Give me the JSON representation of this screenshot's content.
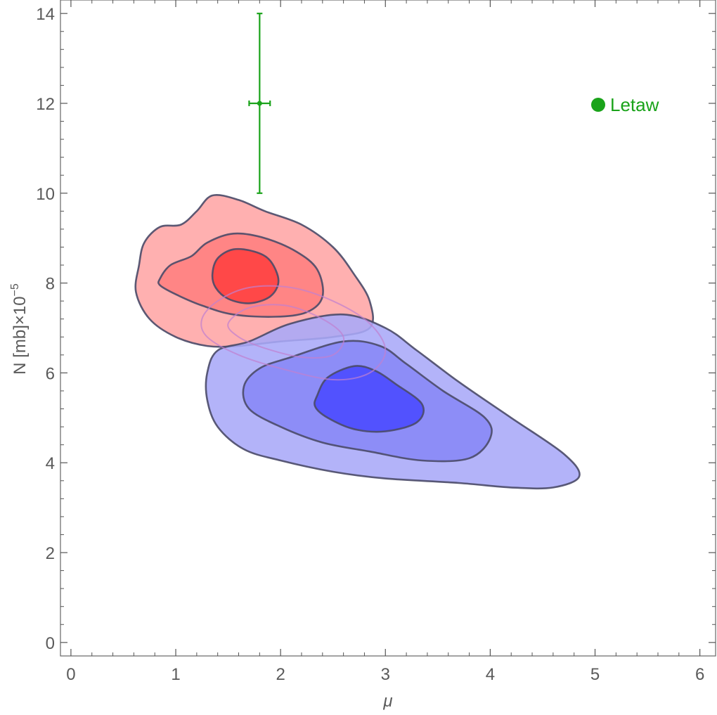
{
  "chart_data": {
    "type": "contour",
    "xlabel": "μ",
    "ylabel_main": "N [mb]×10",
    "ylabel_exponent": "−5",
    "xlim": [
      -0.1,
      6.15
    ],
    "ylim": [
      -0.3,
      14.3
    ],
    "x_ticks": [
      0,
      1,
      2,
      3,
      4,
      5,
      6
    ],
    "x_tick_labels": [
      "0",
      "1",
      "2",
      "3",
      "4",
      "5",
      "6"
    ],
    "y_ticks": [
      0,
      2,
      4,
      6,
      8,
      10,
      12,
      14
    ],
    "y_tick_labels": [
      "0",
      "2",
      "4",
      "6",
      "8",
      "10",
      "12",
      "14"
    ],
    "grid": false,
    "legend_position": "top-right",
    "colors": {
      "red_outer": "#ffb0b0",
      "red_mid": "#ff8585",
      "red_inner": "#ff4848",
      "blue_outer": "#a8a8f8",
      "blue_mid": "#8888f6",
      "blue_inner": "#4a4aff",
      "contour_line": "#4a4a68",
      "faint_contour": "#c080d0",
      "letaw": "#1aa31a",
      "axis": "#555555"
    },
    "contour_sets": [
      {
        "color": "red",
        "levels": [
          {
            "level": "outer",
            "points": [
              [
                0.65,
                8.4
              ],
              [
                0.7,
                8.9
              ],
              [
                0.85,
                9.25
              ],
              [
                1.05,
                9.3
              ],
              [
                1.2,
                9.6
              ],
              [
                1.35,
                9.95
              ],
              [
                1.6,
                9.85
              ],
              [
                1.85,
                9.6
              ],
              [
                2.2,
                9.3
              ],
              [
                2.5,
                8.8
              ],
              [
                2.7,
                8.2
              ],
              [
                2.85,
                7.6
              ],
              [
                2.85,
                7.0
              ],
              [
                2.5,
                6.8
              ],
              [
                2.0,
                6.7
              ],
              [
                1.6,
                6.6
              ],
              [
                1.3,
                6.6
              ],
              [
                1.0,
                6.8
              ],
              [
                0.75,
                7.2
              ],
              [
                0.62,
                7.8
              ]
            ]
          },
          {
            "level": "mid",
            "points": [
              [
                0.85,
                8.1
              ],
              [
                0.95,
                8.4
              ],
              [
                1.15,
                8.6
              ],
              [
                1.3,
                8.9
              ],
              [
                1.55,
                9.1
              ],
              [
                1.85,
                9.0
              ],
              [
                2.15,
                8.7
              ],
              [
                2.35,
                8.3
              ],
              [
                2.4,
                7.7
              ],
              [
                2.25,
                7.35
              ],
              [
                1.95,
                7.25
              ],
              [
                1.55,
                7.3
              ],
              [
                1.25,
                7.5
              ],
              [
                1.0,
                7.75
              ],
              [
                0.85,
                7.95
              ]
            ]
          },
          {
            "level": "inner",
            "points": [
              [
                1.35,
                8.2
              ],
              [
                1.4,
                8.55
              ],
              [
                1.55,
                8.75
              ],
              [
                1.75,
                8.7
              ],
              [
                1.9,
                8.5
              ],
              [
                1.98,
                8.05
              ],
              [
                1.9,
                7.7
              ],
              [
                1.7,
                7.55
              ],
              [
                1.5,
                7.65
              ],
              [
                1.38,
                7.9
              ]
            ]
          }
        ]
      },
      {
        "color": "blue",
        "levels": [
          {
            "level": "outer",
            "points": [
              [
                1.3,
                6.0
              ],
              [
                1.4,
                6.5
              ],
              [
                1.7,
                6.7
              ],
              [
                2.1,
                7.1
              ],
              [
                2.6,
                7.3
              ],
              [
                3.0,
                7.0
              ],
              [
                3.3,
                6.5
              ],
              [
                3.7,
                5.8
              ],
              [
                4.2,
                5.0
              ],
              [
                4.7,
                4.2
              ],
              [
                4.85,
                3.7
              ],
              [
                4.6,
                3.45
              ],
              [
                4.2,
                3.45
              ],
              [
                3.7,
                3.55
              ],
              [
                3.0,
                3.65
              ],
              [
                2.5,
                3.8
              ],
              [
                2.0,
                4.05
              ],
              [
                1.65,
                4.3
              ],
              [
                1.4,
                4.8
              ],
              [
                1.3,
                5.4
              ]
            ]
          },
          {
            "level": "mid",
            "points": [
              [
                1.65,
                5.7
              ],
              [
                1.8,
                6.1
              ],
              [
                2.1,
                6.35
              ],
              [
                2.6,
                6.7
              ],
              [
                2.95,
                6.6
              ],
              [
                3.2,
                6.2
              ],
              [
                3.55,
                5.6
              ],
              [
                3.95,
                5.0
              ],
              [
                4.0,
                4.55
              ],
              [
                3.8,
                4.1
              ],
              [
                3.35,
                4.05
              ],
              [
                2.85,
                4.25
              ],
              [
                2.4,
                4.45
              ],
              [
                2.0,
                4.8
              ],
              [
                1.7,
                5.2
              ]
            ]
          },
          {
            "level": "inner",
            "points": [
              [
                2.35,
                5.5
              ],
              [
                2.45,
                5.9
              ],
              [
                2.7,
                6.15
              ],
              [
                2.9,
                6.05
              ],
              [
                3.1,
                5.75
              ],
              [
                3.35,
                5.3
              ],
              [
                3.3,
                4.9
              ],
              [
                3.0,
                4.7
              ],
              [
                2.7,
                4.75
              ],
              [
                2.45,
                5.0
              ],
              [
                2.33,
                5.25
              ]
            ]
          }
        ]
      },
      {
        "color": "faint",
        "levels": [
          {
            "level": "outer",
            "points": [
              [
                1.25,
                7.2
              ],
              [
                1.4,
                7.6
              ],
              [
                1.7,
                7.9
              ],
              [
                2.1,
                7.9
              ],
              [
                2.5,
                7.6
              ],
              [
                2.85,
                7.1
              ],
              [
                3.0,
                6.5
              ],
              [
                2.85,
                6.0
              ],
              [
                2.5,
                5.85
              ],
              [
                2.0,
                6.1
              ],
              [
                1.6,
                6.4
              ],
              [
                1.3,
                6.8
              ]
            ]
          },
          {
            "level": "inner",
            "points": [
              [
                1.5,
                7.1
              ],
              [
                1.7,
                7.45
              ],
              [
                2.05,
                7.5
              ],
              [
                2.4,
                7.2
              ],
              [
                2.6,
                6.8
              ],
              [
                2.5,
                6.4
              ],
              [
                2.2,
                6.35
              ],
              [
                1.85,
                6.55
              ],
              [
                1.6,
                6.8
              ]
            ]
          }
        ]
      }
    ],
    "letaw_point": {
      "label": "Letaw",
      "x": 1.8,
      "y": 12.0,
      "x_err": 0.1,
      "y_err_minus": 2.0,
      "y_err_plus": 2.0
    },
    "legend": [
      {
        "label": "Letaw",
        "color": "#1aa31a"
      }
    ]
  }
}
